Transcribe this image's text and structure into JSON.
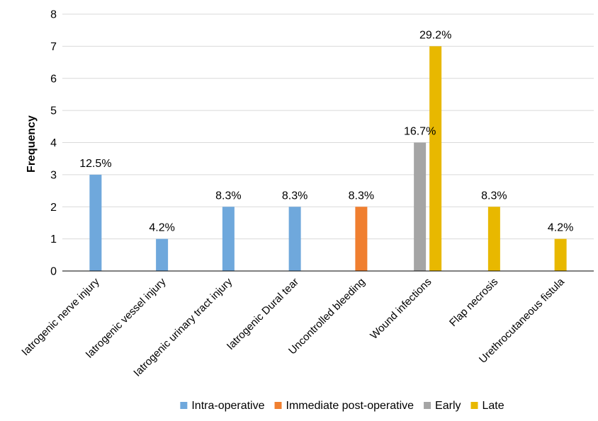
{
  "chart_data": {
    "type": "bar",
    "ylabel": "Frequency",
    "xlabel": "",
    "ylim": [
      0,
      8
    ],
    "yticks": [
      0,
      1,
      2,
      3,
      4,
      5,
      6,
      7,
      8
    ],
    "grid": true,
    "legend_position": "bottom",
    "categories": [
      "Iatrogenic nerve injury",
      "Iatrogenic vessel injury",
      "Iatrogenic urinary tract injury",
      "Iatrogenic Dural tear",
      "Uncontrolled bleeding",
      "Wound infections",
      "Flap necrosis",
      "Urethrocutaneous fistula"
    ],
    "series": [
      {
        "name": "Intra-operative",
        "color": "#6FA8DC",
        "values": [
          3,
          1,
          2,
          2,
          0,
          0,
          0,
          0
        ]
      },
      {
        "name": "Immediate post-operative",
        "color": "#F07F30",
        "values": [
          0,
          0,
          0,
          0,
          2,
          0,
          0,
          0
        ]
      },
      {
        "name": "Early",
        "color": "#A5A5A5",
        "values": [
          0,
          0,
          0,
          0,
          0,
          4,
          0,
          0
        ]
      },
      {
        "name": "Late",
        "color": "#E8B800",
        "values": [
          0,
          0,
          0,
          0,
          0,
          7,
          2,
          1
        ]
      }
    ],
    "data_labels": [
      {
        "category": 0,
        "series": 0,
        "text": "12.5%"
      },
      {
        "category": 1,
        "series": 0,
        "text": "4.2%"
      },
      {
        "category": 2,
        "series": 0,
        "text": "8.3%"
      },
      {
        "category": 3,
        "series": 0,
        "text": "8.3%"
      },
      {
        "category": 4,
        "series": 1,
        "text": "8.3%"
      },
      {
        "category": 5,
        "series": 2,
        "text": "16.7%"
      },
      {
        "category": 5,
        "series": 3,
        "text": "29.2%"
      },
      {
        "category": 6,
        "series": 3,
        "text": "8.3%"
      },
      {
        "category": 7,
        "series": 3,
        "text": "4.2%"
      }
    ]
  }
}
